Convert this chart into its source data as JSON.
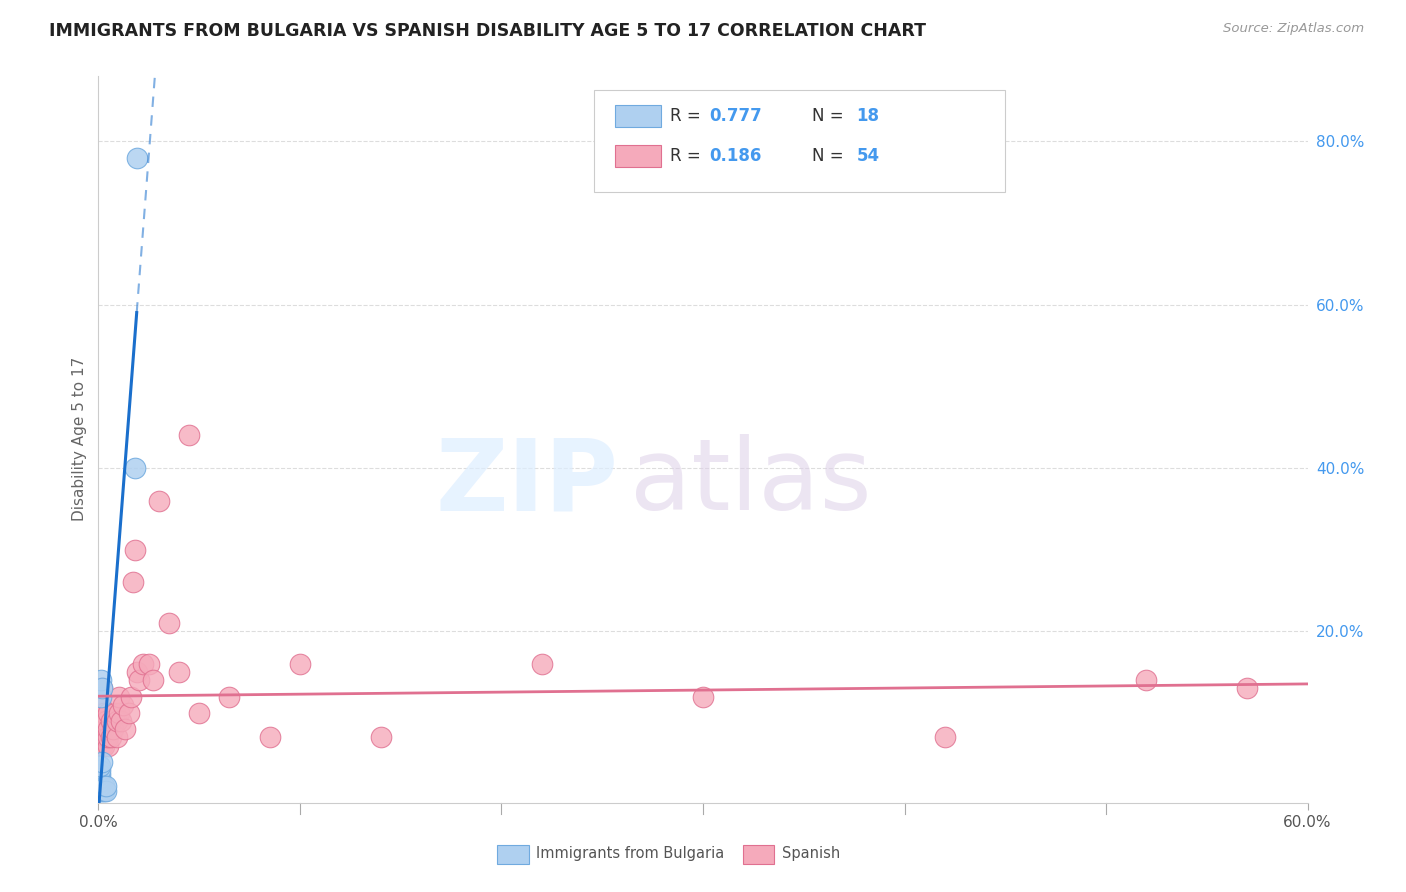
{
  "title": "IMMIGRANTS FROM BULGARIA VS SPANISH DISABILITY AGE 5 TO 17 CORRELATION CHART",
  "source": "Source: ZipAtlas.com",
  "ylabel": "Disability Age 5 to 17",
  "ylabel_right_ticks": [
    "80.0%",
    "60.0%",
    "40.0%",
    "20.0%"
  ],
  "ylabel_right_vals": [
    0.8,
    0.6,
    0.4,
    0.2
  ],
  "xlim": [
    0.0,
    0.6
  ],
  "ylim": [
    -0.01,
    0.88
  ],
  "legend_r1": "R = 0.777",
  "legend_n1": "N = 18",
  "legend_r2": "R = 0.186",
  "legend_n2": "N = 54",
  "bulgaria_color": "#afd0f0",
  "bulgaria_edge": "#70aadf",
  "spanish_color": "#f5aabb",
  "spanish_edge": "#e07090",
  "line_bulgaria_color": "#1a6fcc",
  "line_spanish_color": "#e07090",
  "bg_color": "#ffffff",
  "grid_color": "#dddddd",
  "bulgaria_scatter_x": [
    0.001,
    0.001,
    0.001,
    0.001,
    0.001,
    0.001,
    0.001,
    0.0015,
    0.0015,
    0.002,
    0.002,
    0.002,
    0.003,
    0.003,
    0.004,
    0.004,
    0.018,
    0.019
  ],
  "bulgaria_scatter_y": [
    0.005,
    0.01,
    0.015,
    0.02,
    0.025,
    0.03,
    0.035,
    0.12,
    0.14,
    0.005,
    0.04,
    0.13,
    0.005,
    0.01,
    0.005,
    0.01,
    0.4,
    0.78
  ],
  "spanish_scatter_x": [
    0.0,
    0.0,
    0.0,
    0.001,
    0.001,
    0.001,
    0.001,
    0.002,
    0.002,
    0.002,
    0.002,
    0.003,
    0.003,
    0.003,
    0.004,
    0.004,
    0.005,
    0.005,
    0.005,
    0.005,
    0.006,
    0.006,
    0.007,
    0.008,
    0.009,
    0.009,
    0.01,
    0.01,
    0.011,
    0.012,
    0.013,
    0.015,
    0.016,
    0.017,
    0.018,
    0.019,
    0.02,
    0.022,
    0.025,
    0.027,
    0.03,
    0.035,
    0.04,
    0.045,
    0.05,
    0.065,
    0.085,
    0.1,
    0.14,
    0.22,
    0.3,
    0.42,
    0.52,
    0.57
  ],
  "spanish_scatter_y": [
    0.08,
    0.1,
    0.12,
    0.07,
    0.09,
    0.1,
    0.12,
    0.06,
    0.08,
    0.09,
    0.13,
    0.06,
    0.08,
    0.1,
    0.07,
    0.09,
    0.06,
    0.07,
    0.08,
    0.1,
    0.07,
    0.09,
    0.08,
    0.1,
    0.07,
    0.09,
    0.1,
    0.12,
    0.09,
    0.11,
    0.08,
    0.1,
    0.12,
    0.26,
    0.3,
    0.15,
    0.14,
    0.16,
    0.16,
    0.14,
    0.36,
    0.21,
    0.15,
    0.44,
    0.1,
    0.12,
    0.07,
    0.16,
    0.07,
    0.16,
    0.12,
    0.07,
    0.14,
    0.13
  ]
}
